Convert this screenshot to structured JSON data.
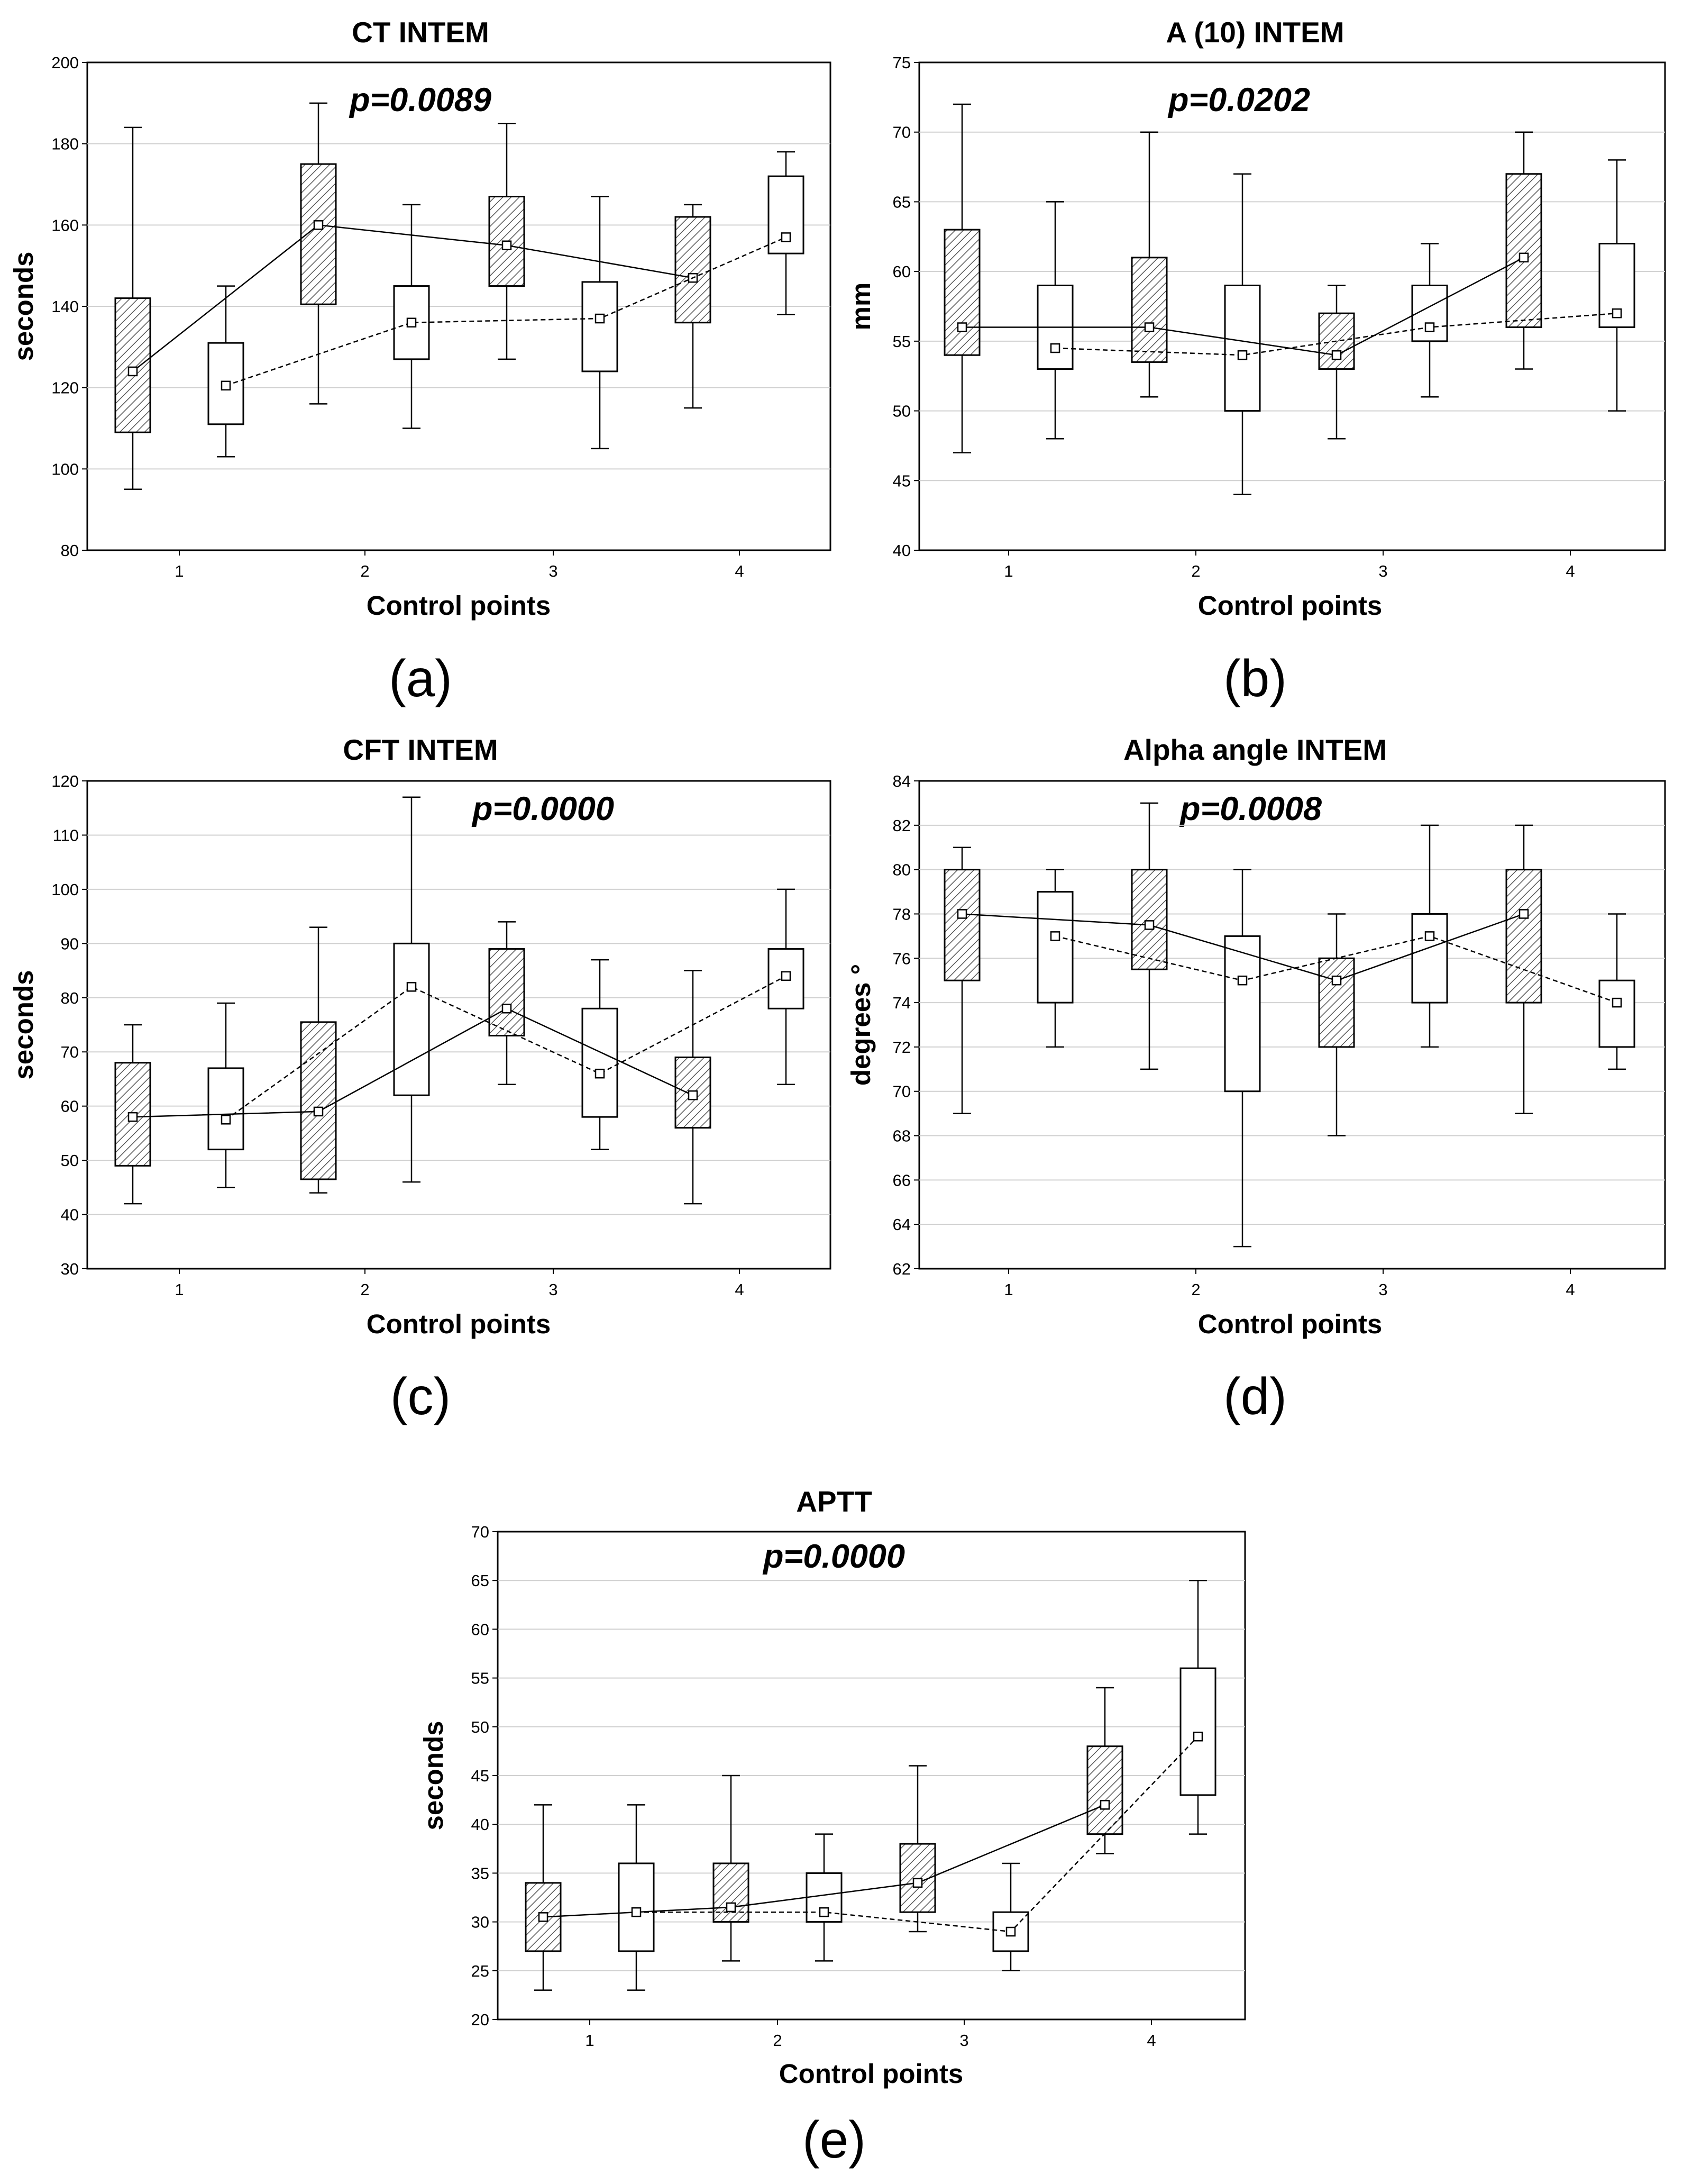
{
  "chart_data": [
    {
      "id": "a",
      "type": "box",
      "title": "CT INTEM",
      "p_value": "p=0.0089",
      "caption": "(a)",
      "xlabel": "Control points",
      "ylabel": "seconds",
      "categories": [
        "1",
        "2",
        "3",
        "4"
      ],
      "ylim": [
        80,
        200
      ],
      "yticks": [
        80,
        100,
        120,
        140,
        160,
        180,
        200
      ],
      "series": [
        {
          "name": "hatched",
          "style": "hatched",
          "line": "solid",
          "boxes": [
            {
              "min": 95,
              "q1": 109,
              "median": 124,
              "q3": 142,
              "max": 184
            },
            {
              "min": 116,
              "q1": 140.5,
              "median": 160,
              "q3": 175,
              "max": 190
            },
            {
              "min": 127,
              "q1": 145,
              "median": 155,
              "q3": 167,
              "max": 185
            },
            {
              "min": 115,
              "q1": 136,
              "median": 147,
              "q3": 162,
              "max": 165
            }
          ]
        },
        {
          "name": "open",
          "style": "open",
          "line": "dashed",
          "boxes": [
            {
              "min": 103,
              "q1": 111,
              "median": 120.5,
              "q3": 131,
              "max": 145
            },
            {
              "min": 110,
              "q1": 127,
              "median": 136,
              "q3": 145,
              "max": 165
            },
            {
              "min": 105,
              "q1": 124,
              "median": 137,
              "q3": 146,
              "max": 167
            },
            {
              "min": 138,
              "q1": 153,
              "median": 157,
              "q3": 172,
              "max": 178
            }
          ]
        }
      ]
    },
    {
      "id": "b",
      "type": "box",
      "title": "A (10) INTEM",
      "p_value": "p=0.0202",
      "caption": "(b)",
      "xlabel": "Control points",
      "ylabel": "mm",
      "categories": [
        "1",
        "2",
        "3",
        "4"
      ],
      "ylim": [
        40,
        75
      ],
      "yticks": [
        40,
        45,
        50,
        55,
        60,
        65,
        70,
        75
      ],
      "series": [
        {
          "name": "hatched",
          "style": "hatched",
          "line": "solid",
          "boxes": [
            {
              "min": 47,
              "q1": 54,
              "median": 56,
              "q3": 63,
              "max": 72
            },
            {
              "min": 51,
              "q1": 53.5,
              "median": 56,
              "q3": 61,
              "max": 70
            },
            {
              "min": 48,
              "q1": 53,
              "median": 54,
              "q3": 57,
              "max": 59
            },
            {
              "min": 53,
              "q1": 56,
              "median": 61,
              "q3": 67,
              "max": 70
            }
          ]
        },
        {
          "name": "open",
          "style": "open",
          "line": "dashed",
          "boxes": [
            {
              "min": 48,
              "q1": 53,
              "median": 54.5,
              "q3": 59,
              "max": 65
            },
            {
              "min": 44,
              "q1": 50,
              "median": 54,
              "q3": 59,
              "max": 67
            },
            {
              "min": 51,
              "q1": 55,
              "median": 56,
              "q3": 59,
              "max": 62
            },
            {
              "min": 50,
              "q1": 56,
              "median": 57,
              "q3": 62,
              "max": 68
            }
          ]
        }
      ]
    },
    {
      "id": "c",
      "type": "box",
      "title": "CFT INTEM",
      "p_value": "p=0.0000",
      "caption": "(c)",
      "xlabel": "Control points",
      "ylabel": "seconds",
      "categories": [
        "1",
        "2",
        "3",
        "4"
      ],
      "ylim": [
        30,
        120
      ],
      "yticks": [
        30,
        40,
        50,
        60,
        70,
        80,
        90,
        100,
        110,
        120
      ],
      "series": [
        {
          "name": "hatched",
          "style": "hatched",
          "line": "solid",
          "boxes": [
            {
              "min": 42,
              "q1": 49,
              "median": 58,
              "q3": 68,
              "max": 75
            },
            {
              "min": 44,
              "q1": 46.5,
              "median": 59,
              "q3": 75.5,
              "max": 93
            },
            {
              "min": 64,
              "q1": 73,
              "median": 78,
              "q3": 89,
              "max": 94
            },
            {
              "min": 42,
              "q1": 56,
              "median": 62,
              "q3": 69,
              "max": 85
            }
          ]
        },
        {
          "name": "open",
          "style": "open",
          "line": "dashed",
          "boxes": [
            {
              "min": 45,
              "q1": 52,
              "median": 57.5,
              "q3": 67,
              "max": 79
            },
            {
              "min": 46,
              "q1": 62,
              "median": 82,
              "q3": 90,
              "max": 117
            },
            {
              "min": 52,
              "q1": 58,
              "median": 66,
              "q3": 78,
              "max": 87
            },
            {
              "min": 64,
              "q1": 78,
              "median": 84,
              "q3": 89,
              "max": 100
            }
          ]
        }
      ]
    },
    {
      "id": "d",
      "type": "box",
      "title": "Alpha angle INTEM",
      "p_value": "p=0.0008",
      "caption": "(d)",
      "xlabel": "Control points",
      "ylabel": "degrees °",
      "categories": [
        "1",
        "2",
        "3",
        "4"
      ],
      "ylim": [
        62,
        84
      ],
      "yticks": [
        62,
        64,
        66,
        68,
        70,
        72,
        74,
        76,
        78,
        80,
        82,
        84
      ],
      "series": [
        {
          "name": "hatched",
          "style": "hatched",
          "line": "solid",
          "boxes": [
            {
              "min": 69,
              "q1": 75,
              "median": 78,
              "q3": 80,
              "max": 81
            },
            {
              "min": 71,
              "q1": 75.5,
              "median": 77.5,
              "q3": 80,
              "max": 83
            },
            {
              "min": 68,
              "q1": 72,
              "median": 75,
              "q3": 76,
              "max": 78
            },
            {
              "min": 69,
              "q1": 74,
              "median": 78,
              "q3": 80,
              "max": 82
            }
          ]
        },
        {
          "name": "open",
          "style": "open",
          "line": "dashed",
          "boxes": [
            {
              "min": 72,
              "q1": 74,
              "median": 77,
              "q3": 79,
              "max": 80
            },
            {
              "min": 63,
              "q1": 70,
              "median": 75,
              "q3": 77,
              "max": 80
            },
            {
              "min": 72,
              "q1": 74,
              "median": 77,
              "q3": 78,
              "max": 82
            },
            {
              "min": 71,
              "q1": 72,
              "median": 74,
              "q3": 75,
              "max": 78
            }
          ]
        }
      ]
    },
    {
      "id": "e",
      "type": "box",
      "title": "APTT",
      "p_value": "p=0.0000",
      "caption": "(e)",
      "xlabel": "Control points",
      "ylabel": "seconds",
      "categories": [
        "1",
        "2",
        "3",
        "4"
      ],
      "ylim": [
        20,
        70
      ],
      "yticks": [
        20,
        25,
        30,
        35,
        40,
        45,
        50,
        55,
        60,
        65,
        70
      ],
      "series": [
        {
          "name": "hatched",
          "style": "hatched",
          "line": "solid",
          "boxes": [
            {
              "min": 23,
              "q1": 27,
              "median": 30.5,
              "q3": 34,
              "max": 42
            },
            {
              "min": 26,
              "q1": 30,
              "median": 31.5,
              "q3": 36,
              "max": 45
            },
            {
              "min": 29,
              "q1": 31,
              "median": 34,
              "q3": 38,
              "max": 46
            },
            {
              "min": 37,
              "q1": 39,
              "median": 42,
              "q3": 48,
              "max": 54
            }
          ]
        },
        {
          "name": "open",
          "style": "open",
          "line": "dashed",
          "boxes": [
            {
              "min": 23,
              "q1": 27,
              "median": 31,
              "q3": 36,
              "max": 42
            },
            {
              "min": 26,
              "q1": 30,
              "median": 31,
              "q3": 35,
              "max": 39
            },
            {
              "min": 25,
              "q1": 27,
              "median": 29,
              "q3": 31,
              "max": 36
            },
            {
              "min": 39,
              "q1": 43,
              "median": 49,
              "q3": 56,
              "max": 65
            }
          ]
        }
      ]
    }
  ],
  "colors": {
    "ink": "#000000",
    "grid": "#d0d0d0",
    "hatch": "#555555",
    "plot_bg": "#ffffff"
  }
}
